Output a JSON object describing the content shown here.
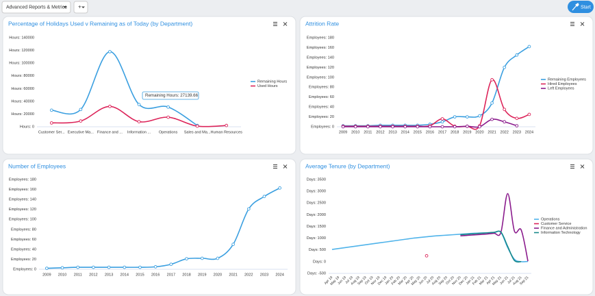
{
  "toolbar": {
    "report_select": "Advanced Reports & Metrics",
    "add_button": "+",
    "start_button": "Start"
  },
  "chart_data": [
    {
      "type": "line",
      "title": "Percentage of Holidays Used v Remaining as of Today (by Department)",
      "categories": [
        "Customer Ser...",
        "Executive Ma...",
        "Finance and ...",
        "Information ...",
        "Operations",
        "Sales and Ma...",
        "Human Resources"
      ],
      "series": [
        {
          "name": "Remaining Hours",
          "color": "#3a9fe0",
          "values": [
            26000,
            27139.66,
            118000,
            35000,
            31000,
            2000,
            null
          ]
        },
        {
          "name": "Used Hours",
          "color": "#dc2359",
          "values": [
            6000,
            9000,
            32000,
            8000,
            15000,
            1000,
            2000
          ]
        }
      ],
      "ylim": [
        0,
        140000
      ],
      "yticks": [
        {
          "value": 0,
          "label": "Hours: 0"
        },
        {
          "value": 20000,
          "label": "Hours: 20000"
        },
        {
          "value": 40000,
          "label": "Hours: 40000"
        },
        {
          "value": 60000,
          "label": "Hours: 60000"
        },
        {
          "value": 80000,
          "label": "Hours: 80000"
        },
        {
          "value": 100000,
          "label": "Hours: 100000"
        },
        {
          "value": 120000,
          "label": "Hours: 120000"
        },
        {
          "value": 140000,
          "label": "Hours: 140000"
        }
      ],
      "annotations": [
        "Remaining Hours: 27139.66"
      ],
      "markers": true
    },
    {
      "type": "line",
      "title": "Attrition Rate",
      "categories": [
        "2009",
        "2010",
        "2011",
        "2012",
        "2013",
        "2014",
        "2015",
        "2016",
        "2017",
        "2018",
        "2019",
        "2020",
        "2021",
        "2022",
        "2023",
        "2024"
      ],
      "series": [
        {
          "name": "Remaining Employees",
          "color": "#3a9fe0",
          "values": [
            2,
            2,
            2,
            3,
            3,
            3,
            3,
            5,
            10,
            20,
            20,
            22,
            48,
            120,
            145,
            162
          ]
        },
        {
          "name": "Hired Employees",
          "color": "#dc2359",
          "values": [
            1,
            1,
            1,
            1,
            1,
            1,
            1,
            2,
            16,
            1,
            1,
            2,
            95,
            35,
            17,
            25
          ]
        },
        {
          "name": "Left Employees",
          "color": "#8a1a8c",
          "values": [
            0,
            0,
            0,
            0,
            0,
            0,
            0,
            0,
            0,
            0,
            1,
            0,
            15,
            10,
            2,
            null
          ]
        }
      ],
      "ylim": [
        0,
        180
      ],
      "yticks": [
        {
          "value": 0,
          "label": "Employees: 0"
        },
        {
          "value": 20,
          "label": "Employees: 20"
        },
        {
          "value": 40,
          "label": "Employees: 40"
        },
        {
          "value": 60,
          "label": "Employees: 60"
        },
        {
          "value": 80,
          "label": "Employees: 80"
        },
        {
          "value": 100,
          "label": "Employees: 100"
        },
        {
          "value": 120,
          "label": "Employees: 120"
        },
        {
          "value": 140,
          "label": "Employees: 140"
        },
        {
          "value": 160,
          "label": "Employees: 160"
        },
        {
          "value": 180,
          "label": "Employees: 180"
        }
      ],
      "markers": true
    },
    {
      "type": "line",
      "title": "Number of Employees",
      "categories": [
        "2009",
        "2010",
        "2011",
        "2012",
        "2013",
        "2014",
        "2015",
        "2016",
        "2017",
        "2018",
        "2019",
        "2020",
        "2021",
        "2022",
        "2023",
        "2024"
      ],
      "series": [
        {
          "color": "#3a9fe0",
          "values": [
            2,
            3,
            4,
            4,
            4,
            4,
            4,
            5,
            10,
            21,
            22,
            22,
            50,
            121,
            146,
            163
          ]
        }
      ],
      "ylim": [
        0,
        180
      ],
      "yticks": [
        {
          "value": 0,
          "label": "Employees: 0"
        },
        {
          "value": 20,
          "label": "Employees: 20"
        },
        {
          "value": 40,
          "label": "Employees: 40"
        },
        {
          "value": 60,
          "label": "Employees: 60"
        },
        {
          "value": 80,
          "label": "Employees: 80"
        },
        {
          "value": 100,
          "label": "Employees: 100"
        },
        {
          "value": 120,
          "label": "Employees: 120"
        },
        {
          "value": 140,
          "label": "Employees: 140"
        },
        {
          "value": 160,
          "label": "Employees: 160"
        },
        {
          "value": 180,
          "label": "Employees: 180"
        }
      ],
      "markers": true
    },
    {
      "type": "line",
      "title": "Average Tenure (by Department)",
      "categories": [
        "Apr 19",
        "May 19",
        "Jun 19",
        "Jul 19",
        "Aug 19",
        "Sep 19",
        "Oct 19",
        "Nov 19",
        "Dec 19",
        "Jan 20",
        "Feb 20",
        "Mar 20",
        "Apr 20",
        "May 20",
        "Jun 20",
        "Jul 20",
        "Aug 20",
        "Sep 20",
        "Oct 20",
        "Nov 20",
        "Dec 20",
        "Jan 21",
        "Feb 21",
        "Mar 21",
        "Apr 21",
        "May 21",
        "Jun 21",
        "Jul 21",
        "Aug 21",
        "Sep 21"
      ],
      "series": [
        {
          "name": "Operations",
          "color": "#4fb3ea",
          "values": [
            520,
            560,
            600,
            640,
            680,
            720,
            760,
            800,
            840,
            880,
            920,
            960,
            1000,
            1030,
            1060,
            1090,
            1110,
            1130,
            1150,
            1170,
            1190,
            1210,
            1220,
            1230,
            1240,
            1250,
            600,
            100,
            0,
            10
          ]
        },
        {
          "name": "Customer Service",
          "color": "#dc2359",
          "values": [
            null,
            null,
            null,
            null,
            null,
            null,
            null,
            null,
            null,
            null,
            null,
            null,
            null,
            null,
            250,
            null,
            null,
            null,
            null,
            null,
            null,
            null,
            null,
            null,
            null,
            null,
            null,
            null,
            null,
            null
          ]
        },
        {
          "name": "Finance and Administration",
          "color": "#8a1a8c",
          "values": [
            null,
            null,
            null,
            null,
            null,
            null,
            null,
            null,
            null,
            null,
            null,
            null,
            null,
            null,
            null,
            null,
            null,
            null,
            null,
            1100,
            1120,
            1140,
            1160,
            1180,
            1210,
            1250,
            2900,
            1300,
            1350,
            20
          ]
        },
        {
          "name": "Information Technology",
          "color": "#17888a",
          "values": [
            null,
            null,
            null,
            null,
            null,
            null,
            null,
            null,
            null,
            null,
            null,
            null,
            null,
            null,
            null,
            null,
            null,
            null,
            null,
            1150,
            1170,
            1190,
            1210,
            1230,
            1250,
            1260,
            650,
            50,
            0,
            null
          ]
        }
      ],
      "ylim": [
        -500,
        3500
      ],
      "yticks": [
        {
          "value": -500,
          "label": "Days: -500"
        },
        {
          "value": 0,
          "label": "Days: 0"
        },
        {
          "value": 500,
          "label": "Days: 500"
        },
        {
          "value": 1000,
          "label": "Days: 1000"
        },
        {
          "value": 1500,
          "label": "Days: 1500"
        },
        {
          "value": 2000,
          "label": "Days: 2000"
        },
        {
          "value": 2500,
          "label": "Days: 2500"
        },
        {
          "value": 3000,
          "label": "Days: 3000"
        },
        {
          "value": 3500,
          "label": "Days: 3500"
        }
      ],
      "markers": false
    }
  ]
}
